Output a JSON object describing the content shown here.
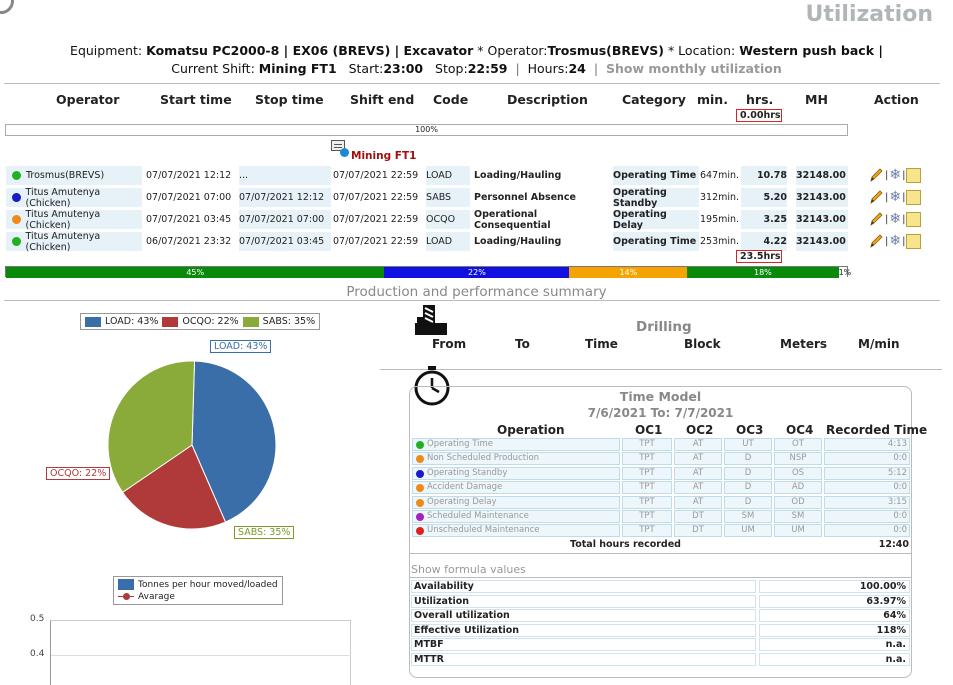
{
  "title": "Utilization",
  "header": {
    "equipment_label": "Equipment:",
    "equipment_value": "Komatsu PC2000-8 | EX06 (BREVS) | Excavator",
    "operator_label": " * Operator:",
    "operator_value": "Trosmus(BREVS)",
    "location_label": " * Location:",
    "location_value": "Western push back |",
    "shift_label": "Current Shift:",
    "shift_value": "Mining FT1",
    "start_label": "Start:",
    "start_value": "23:00",
    "stop_label": "Stop:",
    "stop_value": "22:59",
    "hours_label": "Hours:",
    "hours_value": "24",
    "pipe": "|",
    "monthly_link": "Show monthly utilization"
  },
  "table": {
    "columns": [
      "Operator",
      "Start time",
      "Stop time",
      "Shift end",
      "Code",
      "Description",
      "Category",
      "min.",
      "hrs.",
      "MH",
      "Action"
    ],
    "top_hours": "0.00hrs",
    "top_progress": "100%",
    "shift_name": "Mining FT1",
    "rows": [
      {
        "color": "#22b022",
        "operator": "Trosmus(BREVS)",
        "start": "07/07/2021 12:12",
        "stop": "...",
        "shift_end": "07/07/2021 22:59",
        "code": "LOAD",
        "description": "Loading/Hauling",
        "category": "Operating Time",
        "min": "647min.",
        "hrs": "10.78",
        "mh": "32148.00"
      },
      {
        "color": "#1a1acc",
        "operator": "Titus Amutenya (Chicken)",
        "start": "07/07/2021 07:00",
        "stop": "07/07/2021 12:12",
        "shift_end": "07/07/2021 22:59",
        "code": "SABS",
        "description": "Personnel Absence",
        "category": "Operating Standby",
        "min": "312min.",
        "hrs": "5.20",
        "mh": "32143.00"
      },
      {
        "color": "#f08a17",
        "operator": "Titus Amutenya (Chicken)",
        "start": "07/07/2021 03:45",
        "stop": "07/07/2021 07:00",
        "shift_end": "07/07/2021 22:59",
        "code": "OCQO",
        "description": "Operational Consequential",
        "category": "Operating Delay",
        "min": "195min.",
        "hrs": "3.25",
        "mh": "32143.00"
      },
      {
        "color": "#22b022",
        "operator": "Titus Amutenya (Chicken)",
        "start": "06/07/2021 23:32",
        "stop": "07/07/2021 03:45",
        "shift_end": "07/07/2021 22:59",
        "code": "LOAD",
        "description": "Loading/Hauling",
        "category": "Operating Time",
        "min": "253min.",
        "hrs": "4.22",
        "mh": "32143.00"
      }
    ],
    "total_hours": "23.5hrs",
    "bar_segments": [
      {
        "label": "45%",
        "value": 45,
        "color": "#0a8a0a"
      },
      {
        "label": "22%",
        "value": 22,
        "color": "#1010e0"
      },
      {
        "label": "14%",
        "value": 14,
        "color": "#f5a300"
      },
      {
        "label": "18%",
        "value": 18,
        "color": "#0a8a0a"
      },
      {
        "label": "1%",
        "value": 1,
        "color": "#ffffff"
      }
    ]
  },
  "summary_title": "Production and performance summary",
  "pie": {
    "legend": [
      "LOAD: 43%",
      "OCQO: 22%",
      "SABS: 35%"
    ],
    "colors": [
      "#3a6ea8",
      "#b03a3a",
      "#8aaa3a"
    ],
    "values": [
      43,
      22,
      35
    ],
    "labels": [
      "LOAD: 43%",
      "OCQO: 22%",
      "SABS: 35%"
    ]
  },
  "line_chart": {
    "legend": [
      "Tonnes per hour moved/loaded",
      "Avarage"
    ],
    "ticks": [
      "0.5",
      "0.4"
    ]
  },
  "drilling": {
    "title": "Drilling",
    "columns": [
      "From",
      "To",
      "Time",
      "Block",
      "Meters",
      "M/min"
    ]
  },
  "time_model": {
    "title": "Time Model",
    "range": "7/6/2021 To: 7/7/2021",
    "columns": [
      "Operation",
      "OC1",
      "OC2",
      "OC3",
      "OC4",
      "Recorded Time"
    ],
    "rows": [
      {
        "color": "#22b022",
        "op": "Operating Time",
        "oc1": "TPT",
        "oc2": "AT",
        "oc3": "UT",
        "oc4": "OT",
        "rec": "4:13"
      },
      {
        "color": "#f08a17",
        "op": "Non Scheduled Production",
        "oc1": "TPT",
        "oc2": "AT",
        "oc3": "D",
        "oc4": "NSP",
        "rec": "0:0"
      },
      {
        "color": "#1a1acc",
        "op": "Operating Standby",
        "oc1": "TPT",
        "oc2": "AT",
        "oc3": "D",
        "oc4": "OS",
        "rec": "5:12"
      },
      {
        "color": "#f08a17",
        "op": "Accident Damage",
        "oc1": "TPT",
        "oc2": "AT",
        "oc3": "D",
        "oc4": "AD",
        "rec": "0:0"
      },
      {
        "color": "#f08a17",
        "op": "Operating Delay",
        "oc1": "TPT",
        "oc2": "AT",
        "oc3": "D",
        "oc4": "OD",
        "rec": "3:15"
      },
      {
        "color": "#a020c0",
        "op": "Scheduled Maintenance",
        "oc1": "TPT",
        "oc2": "DT",
        "oc3": "SM",
        "oc4": "SM",
        "rec": "0:0"
      },
      {
        "color": "#e02020",
        "op": "Unscheduled Maintenance",
        "oc1": "TPT",
        "oc2": "DT",
        "oc3": "UM",
        "oc4": "UM",
        "rec": "0:0"
      }
    ],
    "total_label": "Total hours recorded",
    "total_value": "12:40",
    "formula_link": "Show formula values",
    "formulas": [
      {
        "name": "Availability",
        "value": "100.00%"
      },
      {
        "name": "Utilization",
        "value": "63.97%"
      },
      {
        "name": "Overall utilization",
        "value": "64%"
      },
      {
        "name": "Effective Utilization",
        "value": "118%"
      },
      {
        "name": "MTBF",
        "value": "n.a."
      },
      {
        "name": "MTTR",
        "value": "n.a."
      }
    ]
  }
}
